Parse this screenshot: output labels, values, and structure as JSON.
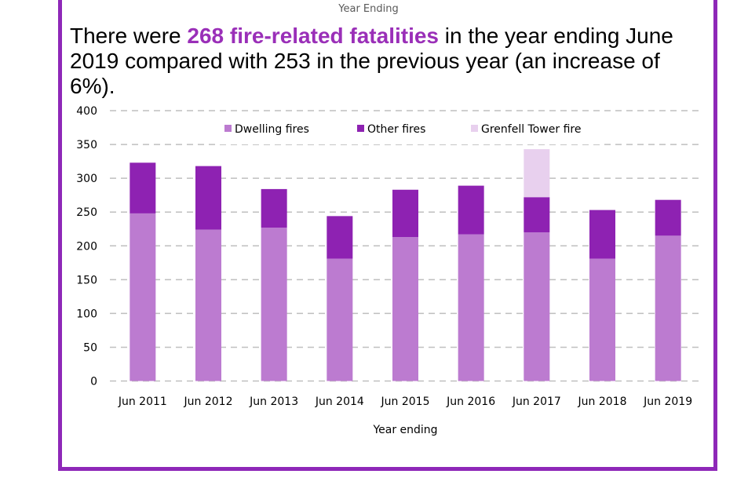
{
  "top_label": "Year Ending",
  "headline": {
    "prefix": "There were ",
    "highlight": "268 fire-related fatalities",
    "suffix": " in the year ending June 2019 compared with 253 in the previous year (an increase of 6%)."
  },
  "colors": {
    "dwelling": "#BC7BD0",
    "other": "#8E22B2",
    "grenfell": "#E8D0EE",
    "highlight": "#9A2FB8",
    "border": "#8E28B8",
    "grid": "#BFBFBF"
  },
  "chart_data": {
    "type": "bar",
    "stacked": true,
    "title": "",
    "xlabel": "Year ending",
    "ylabel": "",
    "ylim": [
      0,
      400
    ],
    "yticks": [
      0,
      50,
      100,
      150,
      200,
      250,
      300,
      350,
      400
    ],
    "grid": true,
    "legend_position": "top-center",
    "categories": [
      "Jun 2011",
      "Jun 2012",
      "Jun 2013",
      "Jun 2014",
      "Jun 2015",
      "Jun 2016",
      "Jun 2017",
      "Jun 2018",
      "Jun 2019"
    ],
    "series": [
      {
        "name": "Dwelling fires",
        "color_key": "dwelling",
        "values": [
          248,
          224,
          227,
          181,
          213,
          217,
          220,
          181,
          215
        ]
      },
      {
        "name": "Other fires",
        "color_key": "other",
        "values": [
          75,
          94,
          57,
          63,
          70,
          72,
          52,
          72,
          53
        ]
      },
      {
        "name": "Grenfell Tower fire",
        "color_key": "grenfell",
        "values": [
          0,
          0,
          0,
          0,
          0,
          0,
          71,
          0,
          0
        ]
      }
    ]
  }
}
